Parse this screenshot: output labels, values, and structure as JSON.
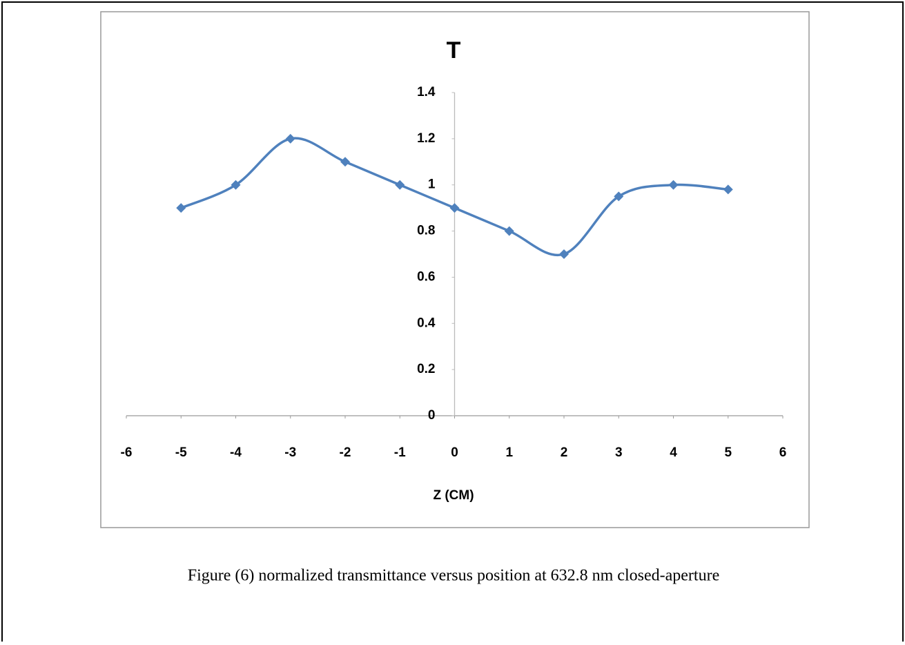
{
  "chart_data": {
    "type": "line",
    "title": "T",
    "x_label": "Z (CM)",
    "x": [
      -5,
      -4,
      -3,
      -2,
      -1,
      0,
      1,
      2,
      3,
      4,
      5
    ],
    "series": [
      {
        "color": "#4f81bd",
        "values": [
          0.9,
          1.0,
          1.2,
          1.1,
          1.0,
          0.9,
          0.8,
          0.7,
          0.95,
          1.0,
          0.98
        ]
      }
    ],
    "xlim": [
      -6,
      6
    ],
    "xticks": [
      -6,
      -5,
      -4,
      -3,
      -2,
      -1,
      0,
      1,
      2,
      3,
      4,
      5,
      6
    ],
    "ylim": [
      0,
      1.4
    ],
    "yticks": [
      0,
      0.2,
      0.4,
      0.6,
      0.8,
      1,
      1.2,
      1.4
    ],
    "smooth": true,
    "marker": "diamond"
  },
  "caption": "Figure (6) normalized transmittance versus position at 632.8 nm closed-aperture"
}
